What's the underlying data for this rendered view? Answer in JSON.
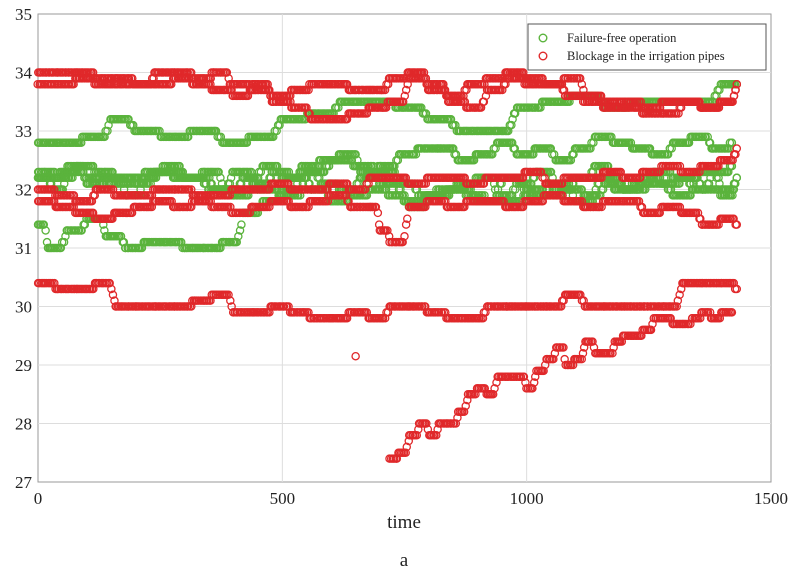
{
  "chart_data": {
    "type": "scatter",
    "xlabel": "time",
    "ylabel": "",
    "caption": "a",
    "xlim": [
      0,
      1500
    ],
    "ylim": [
      27,
      35
    ],
    "xticks": [
      0,
      500,
      1000,
      1500
    ],
    "yticks": [
      27,
      28,
      29,
      30,
      31,
      32,
      33,
      34,
      35
    ],
    "grid": true,
    "legend_position": "top-right",
    "legend": [
      {
        "label": "Failure-free operation",
        "color": "#5ab33c"
      },
      {
        "label": "Blockage in the irrigation pipes",
        "color": "#e0282a"
      }
    ],
    "series": [
      {
        "name": "Failure-free operation",
        "color": "#5ab33c",
        "marker": "circle-open",
        "traces": [
          {
            "x": [
              0,
              40,
              100,
              150,
              200,
              260,
              320,
              380,
              440,
              500,
              560,
              620,
              680,
              740,
              800,
              860,
              920,
              980,
              1040,
              1100,
              1160,
              1220,
              1280,
              1340,
              1400,
              1430
            ],
            "y": [
              32.8,
              32.8,
              32.9,
              33.2,
              33.0,
              32.9,
              33.0,
              32.8,
              32.9,
              33.2,
              33.3,
              33.5,
              33.5,
              33.4,
              33.2,
              33.0,
              33.0,
              33.4,
              33.5,
              33.6,
              33.4,
              33.5,
              33.5,
              33.5,
              33.8,
              33.8
            ]
          },
          {
            "x": [
              0,
              50,
              100,
              150,
              200,
              250,
              300,
              350,
              400,
              450,
              500,
              550,
              600,
              650,
              700,
              750,
              800,
              850,
              900,
              950,
              1000,
              1050,
              1100,
              1150,
              1200,
              1250,
              1300,
              1350,
              1400,
              1430
            ],
            "y": [
              32.2,
              32.3,
              32.2,
              32.1,
              32.2,
              32.3,
              32.2,
              32.0,
              32.3,
              32.0,
              31.9,
              32.3,
              32.5,
              32.4,
              32.1,
              31.8,
              31.9,
              32.0,
              31.8,
              32.2,
              31.9,
              32.1,
              31.8,
              32.2,
              32.0,
              32.1,
              31.9,
              32.3,
              32.0,
              32.2
            ]
          },
          {
            "x": [
              0,
              30,
              60,
              100,
              140,
              180,
              220,
              260,
              300,
              340,
              380,
              420,
              460,
              500,
              540,
              580,
              620,
              660,
              700,
              740,
              780,
              820,
              860,
              900,
              940,
              980,
              1020,
              1060,
              1100,
              1140,
              1180,
              1220,
              1260,
              1300,
              1340,
              1380,
              1420
            ],
            "y": [
              32.2,
              32.0,
              32.4,
              32.1,
              32.2,
              31.9,
              32.3,
              32.4,
              32.2,
              32.3,
              32.0,
              32.2,
              32.4,
              32.2,
              32.3,
              32.1,
              32.0,
              32.2,
              32.3,
              32.1,
              31.9,
              32.0,
              32.1,
              32.2,
              31.9,
              32.1,
              32.3,
              32.0,
              32.2,
              32.4,
              32.0,
              32.1,
              32.3,
              32.2,
              32.0,
              32.3,
              32.4
            ]
          },
          {
            "x": [
              0,
              20,
              60,
              100,
              140,
              180,
              220,
              260,
              300,
              340,
              380,
              420,
              460,
              500,
              540,
              580,
              620,
              660,
              700,
              740,
              780,
              820,
              860,
              900,
              940,
              980,
              1020,
              1060,
              1100,
              1140,
              1180,
              1220,
              1260,
              1300,
              1340,
              1380,
              1420
            ],
            "y": [
              31.4,
              31.0,
              31.3,
              31.5,
              31.2,
              31.0,
              31.1,
              31.1,
              31.0,
              31.0,
              31.1,
              31.6,
              31.8,
              32.0,
              32.4,
              32.5,
              32.6,
              32.3,
              32.4,
              32.6,
              32.7,
              32.7,
              32.5,
              32.6,
              32.8,
              32.6,
              32.7,
              32.5,
              32.7,
              32.9,
              32.8,
              32.7,
              32.6,
              32.8,
              32.9,
              32.7,
              32.8
            ]
          },
          {
            "x": [
              0,
              40,
              80,
              120,
              160,
              200,
              240,
              280,
              320,
              360,
              400,
              440,
              480,
              520,
              560,
              600,
              640,
              680,
              720,
              760,
              800,
              840,
              880,
              920,
              960,
              1000,
              1040,
              1080,
              1120,
              1160,
              1200,
              1240,
              1280,
              1320,
              1360,
              1400,
              1430
            ],
            "y": [
              32.3,
              32.2,
              32.4,
              32.3,
              32.2,
              32.1,
              32.3,
              32.2,
              32.2,
              32.0,
              31.9,
              32.1,
              32.3,
              32.2,
              32.0,
              31.8,
              31.9,
              32.0,
              31.9,
              31.7,
              31.9,
              32.0,
              31.9,
              31.8,
              31.8,
              32.0,
              31.9,
              32.0,
              31.9,
              32.1,
              32.0,
              32.2,
              32.1,
              32.2,
              32.0,
              31.9,
              32.2
            ]
          }
        ]
      },
      {
        "name": "Blockage in the irrigation pipes",
        "color": "#e0282a",
        "marker": "circle-open",
        "traces": [
          {
            "x": [
              0,
              40,
              80,
              120,
              160,
              200,
              240,
              280,
              320,
              360,
              400,
              440,
              480,
              520,
              560,
              600,
              640,
              680,
              720,
              760,
              800,
              840,
              880,
              920,
              960,
              1000,
              1040,
              1080,
              1120,
              1160,
              1200,
              1240,
              1280,
              1320,
              1360,
              1400,
              1430
            ],
            "y": [
              34.0,
              34.0,
              34.0,
              33.9,
              33.9,
              33.8,
              34.0,
              34.0,
              33.9,
              34.0,
              33.6,
              33.8,
              33.5,
              33.7,
              33.8,
              33.8,
              33.7,
              33.7,
              33.9,
              34.0,
              33.7,
              33.6,
              33.8,
              33.9,
              34.0,
              33.9,
              33.8,
              33.9,
              33.6,
              33.5,
              33.5,
              33.4,
              33.5,
              33.5,
              33.4,
              33.5,
              33.8
            ]
          },
          {
            "x": [
              0,
              40,
              80,
              120,
              160,
              200,
              240,
              280,
              320,
              360,
              400,
              440,
              480,
              520,
              560,
              600,
              640,
              680,
              720,
              760,
              800,
              840,
              880,
              920,
              960,
              1000,
              1040,
              1080,
              1120,
              1160,
              1200,
              1240,
              1280,
              1320,
              1360,
              1400,
              1430
            ],
            "y": [
              33.8,
              33.8,
              33.9,
              33.8,
              33.8,
              33.8,
              33.8,
              33.9,
              33.8,
              33.7,
              33.8,
              33.7,
              33.6,
              33.4,
              33.2,
              33.2,
              33.3,
              33.4,
              33.5,
              33.9,
              33.8,
              33.5,
              33.4,
              33.7,
              33.9,
              33.8,
              33.8,
              33.6,
              33.5,
              33.4,
              33.4,
              33.3,
              33.3,
              33.5,
              33.4,
              33.5,
              33.8
            ]
          },
          {
            "x": [
              0,
              40,
              80,
              120,
              160,
              200,
              240,
              280,
              320,
              360,
              400,
              440,
              480,
              520,
              560,
              600,
              640,
              680,
              720,
              760,
              800,
              840,
              880,
              920,
              960,
              1000,
              1040,
              1080,
              1120,
              1160,
              1200,
              1240,
              1280,
              1320,
              1360,
              1400,
              1430
            ],
            "y": [
              32.0,
              31.9,
              31.8,
              32.0,
              31.9,
              31.9,
              32.0,
              32.0,
              31.9,
              31.9,
              32.0,
              32.0,
              32.1,
              32.0,
              32.0,
              32.1,
              32.0,
              32.2,
              32.2,
              32.1,
              32.2,
              32.2,
              32.1,
              32.2,
              32.2,
              32.3,
              32.1,
              32.2,
              32.2,
              32.3,
              32.2,
              32.3,
              32.4,
              32.3,
              32.4,
              32.5,
              32.7
            ]
          },
          {
            "x": [
              0,
              40,
              80,
              120,
              160,
              200,
              240,
              280,
              320,
              360,
              400,
              440,
              480,
              520,
              560,
              600,
              640,
              680,
              700,
              720,
              760,
              800,
              840,
              880,
              920,
              960,
              1000,
              1040,
              1080,
              1120,
              1160,
              1200,
              1240,
              1280,
              1320,
              1360,
              1400,
              1430
            ],
            "y": [
              31.8,
              31.7,
              31.6,
              31.5,
              31.6,
              31.7,
              31.8,
              31.7,
              31.8,
              31.7,
              31.6,
              31.7,
              31.8,
              31.7,
              31.8,
              31.9,
              31.7,
              31.7,
              31.3,
              31.1,
              31.7,
              31.8,
              31.7,
              31.8,
              31.8,
              31.7,
              31.8,
              31.9,
              31.8,
              31.7,
              31.8,
              31.8,
              31.6,
              31.7,
              31.6,
              31.4,
              31.5,
              31.4
            ]
          },
          {
            "x": [
              0,
              40,
              80,
              120,
              160,
              200,
              240,
              280,
              320,
              360,
              400,
              440,
              480,
              520,
              560,
              600,
              640,
              680,
              720,
              760,
              800,
              840,
              880,
              920,
              960,
              1000,
              1040,
              1080,
              1120,
              1160,
              1200,
              1240,
              1280,
              1320,
              1360,
              1400,
              1430
            ],
            "y": [
              30.4,
              30.3,
              30.3,
              30.4,
              30.0,
              30.0,
              30.0,
              30.0,
              30.1,
              30.2,
              29.9,
              29.9,
              30.0,
              29.9,
              29.8,
              29.8,
              29.9,
              29.8,
              30.0,
              30.0,
              29.9,
              29.8,
              29.8,
              30.0,
              30.0,
              30.0,
              30.0,
              30.2,
              30.0,
              30.0,
              30.0,
              30.0,
              30.0,
              30.4,
              30.4,
              30.4,
              30.3
            ]
          },
          {
            "x": [
              720,
              740,
              760,
              780,
              800,
              820,
              840,
              860,
              880,
              900,
              920,
              940,
              960,
              980,
              1000,
              1020,
              1040,
              1060,
              1080,
              1100,
              1120,
              1140,
              1160,
              1180,
              1200,
              1220,
              1240,
              1260,
              1280,
              1300,
              1320,
              1340,
              1360,
              1380,
              1400,
              1420
            ],
            "y": [
              27.4,
              27.5,
              27.8,
              28.0,
              27.8,
              28.0,
              28.0,
              28.2,
              28.5,
              28.6,
              28.5,
              28.8,
              28.8,
              28.8,
              28.6,
              28.9,
              29.1,
              29.3,
              29.0,
              29.1,
              29.4,
              29.2,
              29.2,
              29.4,
              29.5,
              29.5,
              29.6,
              29.8,
              29.8,
              29.7,
              29.7,
              29.8,
              29.9,
              29.8,
              29.9,
              29.9
            ]
          },
          {
            "x": [
              650
            ],
            "y": [
              29.15
            ]
          }
        ]
      }
    ]
  }
}
